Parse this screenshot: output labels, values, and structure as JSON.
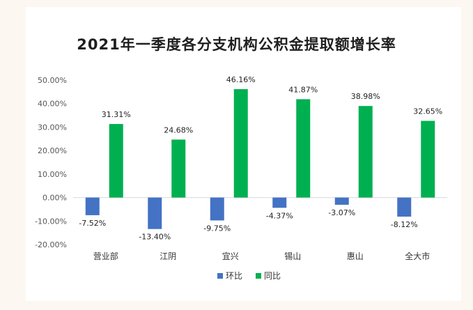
{
  "chart_data": {
    "type": "bar",
    "title": "2021年一季度各分支机构公积金提取额增长率",
    "categories": [
      "营业部",
      "江阴",
      "宜兴",
      "锡山",
      "惠山",
      "全大市"
    ],
    "series": [
      {
        "name": "环比",
        "values": [
          -7.52,
          -13.4,
          -9.75,
          -4.37,
          -3.07,
          -8.12
        ],
        "labels": [
          "-7.52%",
          "-13.40%",
          "-9.75%",
          "-4.37%",
          "-3.07%",
          "-8.12%"
        ],
        "color": "#4472c4"
      },
      {
        "name": "同比",
        "values": [
          31.31,
          24.68,
          46.16,
          41.87,
          38.98,
          32.65
        ],
        "labels": [
          "31.31%",
          "24.68%",
          "46.16%",
          "41.87%",
          "38.98%",
          "32.65%"
        ],
        "color": "#00b050"
      }
    ],
    "ylim": [
      -20,
      50
    ],
    "yticks": [
      50,
      40,
      30,
      20,
      10,
      0,
      -10,
      -20
    ],
    "ytick_labels": [
      "50.00%",
      "40.00%",
      "30.00%",
      "20.00%",
      "10.00%",
      "0.00%",
      "-10.00%",
      "-20.00%"
    ],
    "grid": false,
    "legend_position": "bottom"
  }
}
